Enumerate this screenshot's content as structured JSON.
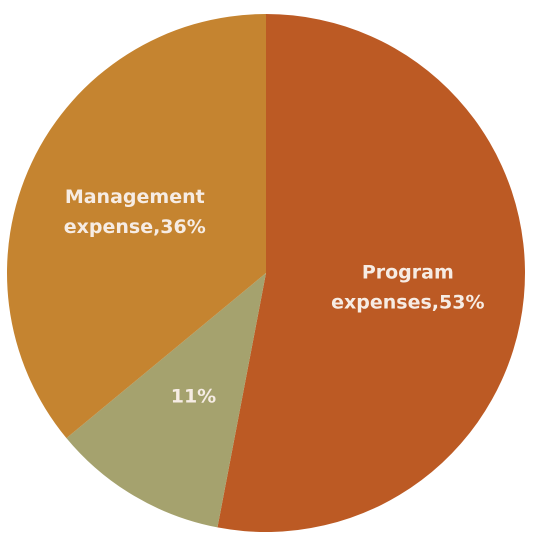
{
  "chart_data": {
    "type": "pie",
    "title": "",
    "start_angle_deg": 0,
    "direction": "clockwise",
    "slices": [
      {
        "label_lines": [
          "Program",
          "expenses,53%"
        ],
        "value": 53,
        "color": "#bc5a24"
      },
      {
        "label_lines": [
          "11%"
        ],
        "value": 11,
        "color": "#a5a26e"
      },
      {
        "label_lines": [
          "Management",
          "expense,36%"
        ],
        "value": 36,
        "color": "#c58430"
      }
    ]
  }
}
